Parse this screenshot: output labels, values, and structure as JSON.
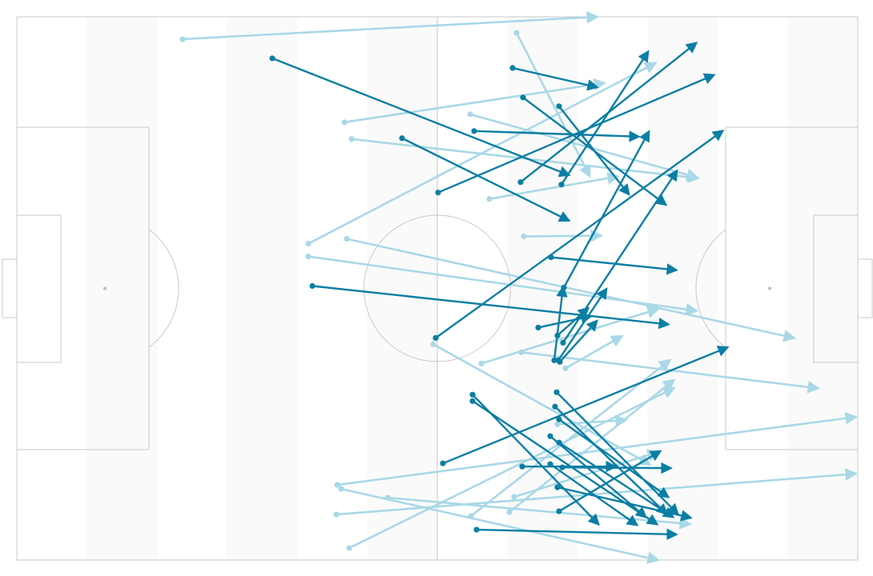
{
  "colors": {
    "completed": "#0b7ea3",
    "incomplete": "#a9d8e6",
    "pitch_line": "#c8c8c8",
    "stripe_a": "#ffffff",
    "stripe_b": "#fafafa"
  },
  "chart_data": {
    "type": "pass-map",
    "title": "",
    "xlim": [
      0,
      105
    ],
    "ylim": [
      0,
      68
    ],
    "series": [
      {
        "status": "completed",
        "passes": [
          {
            "from": [
              31.9,
              62.8
            ],
            "to": [
              68.9,
              48.2
            ]
          },
          {
            "from": [
              48.1,
              52.8
            ],
            "to": [
              68.9,
              42.5
            ]
          },
          {
            "from": [
              52.6,
              46.0
            ],
            "to": [
              87.0,
              60.7
            ]
          },
          {
            "from": [
              61.9,
              61.6
            ],
            "to": [
              72.4,
              59.2
            ]
          },
          {
            "from": [
              63.2,
              57.9
            ],
            "to": [
              81.0,
              44.5
            ]
          },
          {
            "from": [
              57.1,
              53.7
            ],
            "to": [
              77.6,
              53.0
            ]
          },
          {
            "from": [
              67.7,
              56.8
            ],
            "to": [
              76.4,
              45.8
            ]
          },
          {
            "from": [
              62.9,
              47.3
            ],
            "to": [
              84.8,
              64.7
            ]
          },
          {
            "from": [
              68.0,
              47.0
            ],
            "to": [
              78.8,
              63.6
            ]
          },
          {
            "from": [
              36.9,
              34.3
            ],
            "to": [
              81.3,
              29.5
            ]
          },
          {
            "from": [
              68.3,
              34.1
            ],
            "to": [
              78.9,
              53.6
            ]
          },
          {
            "from": [
              52.3,
              27.8
            ],
            "to": [
              88.1,
              53.7
            ]
          },
          {
            "from": [
              66.7,
              37.9
            ],
            "to": [
              82.3,
              36.3
            ]
          },
          {
            "from": [
              67.5,
              28.1
            ],
            "to": [
              71.3,
              31.5
            ]
          },
          {
            "from": [
              65.1,
              29.1
            ],
            "to": [
              71.6,
              30.5
            ]
          },
          {
            "from": [
              67.6,
              25.0
            ],
            "to": [
              73.6,
              33.9
            ]
          },
          {
            "from": [
              67.1,
              25.0
            ],
            "to": [
              68.2,
              34.1
            ]
          },
          {
            "from": [
              53.2,
              12.1
            ],
            "to": [
              88.7,
              26.6
            ]
          },
          {
            "from": [
              56.9,
              20.7
            ],
            "to": [
              72.6,
              4.5
            ]
          },
          {
            "from": [
              56.9,
              19.9
            ],
            "to": [
              79.9,
              4.5
            ]
          },
          {
            "from": [
              67.7,
              14.7
            ],
            "to": [
              81.9,
              5.4
            ]
          },
          {
            "from": [
              66.6,
              15.5
            ],
            "to": [
              78.5,
              5.4
            ]
          },
          {
            "from": [
              63.1,
              11.7
            ],
            "to": [
              74.7,
              11.7
            ]
          },
          {
            "from": [
              68.1,
              11.6
            ],
            "to": [
              81.6,
              11.5
            ]
          },
          {
            "from": [
              66.6,
              12.0
            ],
            "to": [
              77.4,
              4.4
            ]
          },
          {
            "from": [
              68.2,
              27.2
            ],
            "to": [
              82.4,
              48.7
            ]
          },
          {
            "from": [
              67.2,
              19.2
            ],
            "to": [
              81.1,
              5.8
            ]
          },
          {
            "from": [
              67.4,
              21.0
            ],
            "to": [
              82.5,
              5.8
            ]
          },
          {
            "from": [
              57.4,
              3.8
            ],
            "to": [
              82.3,
              3.2
            ]
          },
          {
            "from": [
              67.7,
              6.1
            ],
            "to": [
              80.3,
              13.6
            ]
          },
          {
            "from": [
              67.5,
              9.1
            ],
            "to": [
              84.1,
              5.3
            ]
          },
          {
            "from": [
              67.7,
              17.6
            ],
            "to": [
              81.3,
              7.9
            ]
          },
          {
            "from": [
              67.8,
              24.8
            ],
            "to": [
              72.4,
              29.9
            ]
          }
        ]
      },
      {
        "status": "incomplete",
        "passes": [
          {
            "from": [
              20.7,
              65.2
            ],
            "to": [
              72.4,
              68.0
            ]
          },
          {
            "from": [
              62.4,
              66.0
            ],
            "to": [
              71.5,
              48.1
            ]
          },
          {
            "from": [
              40.9,
              54.8
            ],
            "to": [
              73.3,
              59.7
            ]
          },
          {
            "from": [
              41.8,
              52.7
            ],
            "to": [
              85.0,
              47.8
            ]
          },
          {
            "from": [
              56.6,
              55.8
            ],
            "to": [
              84.9,
              47.9
            ]
          },
          {
            "from": [
              36.4,
              39.6
            ],
            "to": [
              79.7,
              62.2
            ]
          },
          {
            "from": [
              41.2,
              40.2
            ],
            "to": [
              97.0,
              27.8
            ]
          },
          {
            "from": [
              36.4,
              38.0
            ],
            "to": [
              84.8,
              31.2
            ]
          },
          {
            "from": [
              59.0,
              45.2
            ],
            "to": [
              75.0,
              48.0
            ]
          },
          {
            "from": [
              63.3,
              40.5
            ],
            "to": [
              72.9,
              40.6
            ]
          },
          {
            "from": [
              58.0,
              24.6
            ],
            "to": [
              80.0,
              31.4
            ]
          },
          {
            "from": [
              63.0,
              26.0
            ],
            "to": [
              100.0,
              21.5
            ]
          },
          {
            "from": [
              40.0,
              9.4
            ],
            "to": [
              104.7,
              17.9
            ]
          },
          {
            "from": [
              40.5,
              8.9
            ],
            "to": [
              80.0,
              0.0
            ]
          },
          {
            "from": [
              39.9,
              5.7
            ],
            "to": [
              104.7,
              10.8
            ]
          },
          {
            "from": [
              41.5,
              1.5
            ],
            "to": [
              82.0,
              21.5
            ]
          },
          {
            "from": [
              46.3,
              7.8
            ],
            "to": [
              84.0,
              4.5
            ]
          },
          {
            "from": [
              56.7,
              5.5
            ],
            "to": [
              81.5,
              25.0
            ]
          },
          {
            "from": [
              62.1,
              7.9
            ],
            "to": [
              80.0,
              13.5
            ]
          },
          {
            "from": [
              61.5,
              6.0
            ],
            "to": [
              82.0,
              22.5
            ]
          },
          {
            "from": [
              68.5,
              24.0
            ],
            "to": [
              75.5,
              28.0
            ]
          },
          {
            "from": [
              52.0,
              27.0
            ],
            "to": [
              79.0,
              12.0
            ]
          },
          {
            "from": [
              67.5,
              17.0
            ],
            "to": [
              76.0,
              17.5
            ]
          }
        ]
      }
    ]
  }
}
